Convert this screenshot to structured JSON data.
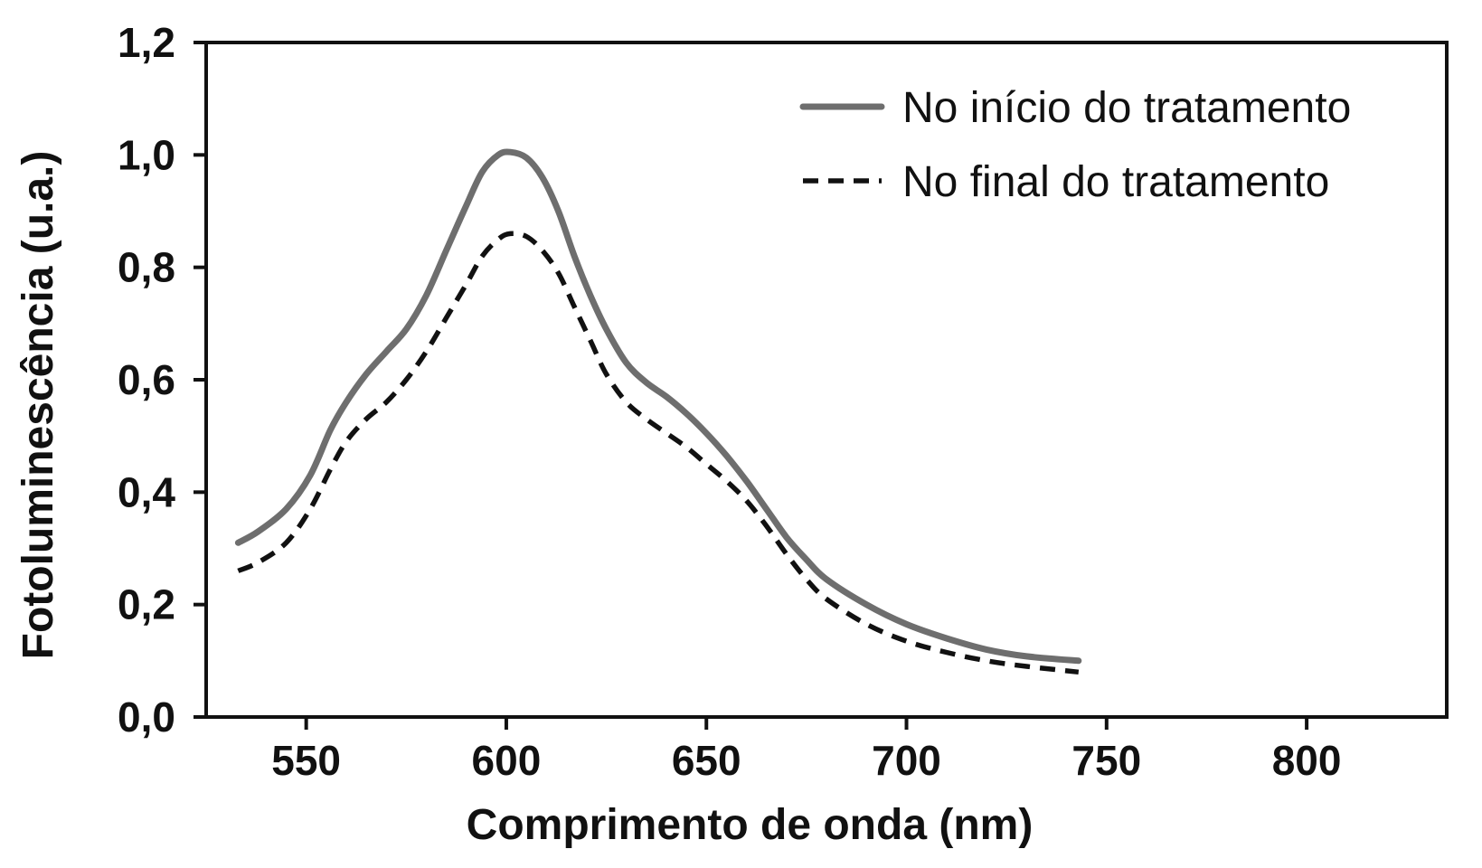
{
  "chart_data": {
    "type": "line",
    "title": "",
    "xlabel": "Comprimento de onda (nm)",
    "ylabel": "Fotoluminescência (u.a.)",
    "xlim": [
      525,
      835
    ],
    "ylim": [
      0,
      1.2
    ],
    "x_ticks": [
      550,
      600,
      650,
      700,
      750,
      800
    ],
    "x_tick_labels": [
      "550",
      "600",
      "650",
      "700",
      "750",
      "800"
    ],
    "y_ticks": [
      0,
      0.2,
      0.4,
      0.6,
      0.8,
      1.0,
      1.2
    ],
    "y_tick_labels": [
      "0,0",
      "0,2",
      "0,4",
      "0,6",
      "0,8",
      "1,0",
      "1,2"
    ],
    "grid": false,
    "legend_position": "top-right",
    "series": [
      {
        "name": "No início do tratamento",
        "color": "#6e6e6e",
        "dash": "solid",
        "x": [
          533,
          538,
          545,
          551,
          556,
          560,
          565,
          570,
          575,
          580,
          585,
          590,
          594,
          598,
          601,
          605,
          609,
          613,
          617,
          621,
          625,
          630,
          635,
          640,
          645,
          650,
          655,
          660,
          665,
          670,
          675,
          680,
          690,
          700,
          710,
          720,
          730,
          743
        ],
        "y": [
          0.31,
          0.33,
          0.37,
          0.43,
          0.51,
          0.56,
          0.61,
          0.65,
          0.69,
          0.75,
          0.83,
          0.91,
          0.97,
          1.0,
          1.005,
          0.995,
          0.96,
          0.9,
          0.82,
          0.75,
          0.69,
          0.63,
          0.595,
          0.57,
          0.54,
          0.505,
          0.465,
          0.42,
          0.37,
          0.32,
          0.28,
          0.245,
          0.2,
          0.165,
          0.14,
          0.12,
          0.108,
          0.1
        ]
      },
      {
        "name": "No final do tratamento",
        "color": "#111111",
        "dash": "dashed",
        "x": [
          533,
          538,
          545,
          551,
          556,
          560,
          565,
          570,
          575,
          580,
          585,
          590,
          594,
          598,
          601,
          605,
          609,
          613,
          617,
          621,
          625,
          630,
          635,
          640,
          645,
          650,
          655,
          660,
          665,
          670,
          675,
          680,
          690,
          700,
          710,
          720,
          730,
          743
        ],
        "y": [
          0.26,
          0.275,
          0.31,
          0.37,
          0.44,
          0.49,
          0.53,
          0.56,
          0.6,
          0.65,
          0.71,
          0.77,
          0.82,
          0.85,
          0.86,
          0.855,
          0.83,
          0.79,
          0.73,
          0.67,
          0.61,
          0.56,
          0.53,
          0.505,
          0.48,
          0.45,
          0.42,
          0.385,
          0.34,
          0.29,
          0.245,
          0.21,
          0.165,
          0.135,
          0.115,
          0.1,
          0.09,
          0.08
        ]
      }
    ]
  }
}
